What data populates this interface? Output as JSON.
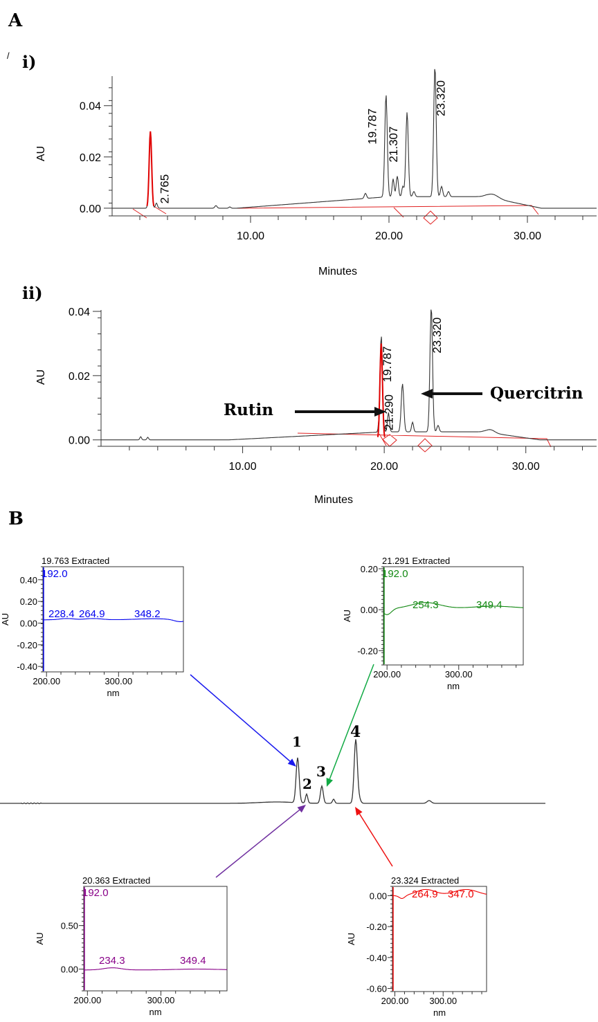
{
  "panel_labels": {
    "a": "A",
    "b": "B",
    "i": "i)",
    "ii": "ii)",
    "slash": "/"
  },
  "chart_data": [
    {
      "id": "chrom_i",
      "type": "line",
      "xlabel": "Minutes",
      "ylabel": "AU",
      "xlim": [
        0,
        35
      ],
      "ylim": [
        -0.003,
        0.051
      ],
      "xticks": [
        10,
        20,
        30
      ],
      "xtick_labels": [
        "10.00",
        "20.00",
        "30.00"
      ],
      "yticks": [
        0,
        0.02,
        0.04
      ],
      "ytick_labels": [
        "0.00",
        "0.02",
        "0.04"
      ],
      "peaks": [
        {
          "rt": 2.765,
          "height": 0.03,
          "label": "2.765",
          "color": "#e00000"
        },
        {
          "rt": 19.787,
          "height": 0.04,
          "label": "19.787",
          "color": "#222222"
        },
        {
          "rt": 21.307,
          "height": 0.033,
          "label": "21.307",
          "color": "#222222"
        },
        {
          "rt": 23.32,
          "height": 0.051,
          "label": "23.320",
          "color": "#222222"
        }
      ]
    },
    {
      "id": "chrom_ii",
      "type": "line",
      "xlabel": "Minutes",
      "ylabel": "AU",
      "xlim": [
        0,
        35
      ],
      "ylim": [
        -0.002,
        0.04
      ],
      "xticks": [
        10,
        20,
        30
      ],
      "xtick_labels": [
        "10.00",
        "20.00",
        "30.00"
      ],
      "yticks": [
        0,
        0.02,
        0.04
      ],
      "ytick_labels": [
        "0.00",
        "0.02",
        "0.04"
      ],
      "peaks": [
        {
          "rt": 19.787,
          "height": 0.03,
          "label": "19.787",
          "color": "#e00000"
        },
        {
          "rt": 21.29,
          "height": 0.015,
          "label": "21.290",
          "color": "#222222"
        },
        {
          "rt": 23.32,
          "height": 0.039,
          "label": "23.320",
          "color": "#222222"
        }
      ],
      "annotations": [
        {
          "text": "Rutin",
          "points_to_rt": 19.787
        },
        {
          "text": "Quercitrin",
          "points_to_rt": 23.32
        }
      ]
    },
    {
      "id": "uv_1",
      "type": "line",
      "title": "19.763 Extracted",
      "xlabel": "nm",
      "ylabel": "AU",
      "color": "#0000ee",
      "xlim": [
        195,
        390
      ],
      "ylim": [
        -0.45,
        0.52
      ],
      "xticks": [
        200,
        300
      ],
      "xtick_labels": [
        "200.00",
        "300.00"
      ],
      "yticks": [
        0.4,
        0.2,
        0.0,
        -0.2,
        -0.4
      ],
      "ytick_labels": [
        "0.40",
        "0.20",
        "0.00",
        "-0.20",
        "-0.40"
      ],
      "maxima": [
        {
          "nm": 192.0,
          "label": "192.0"
        },
        {
          "nm": 228.4,
          "label": "228.4"
        },
        {
          "nm": 264.9,
          "label": "264.9"
        },
        {
          "nm": 348.2,
          "label": "348.2"
        }
      ]
    },
    {
      "id": "uv_3",
      "type": "line",
      "title": "21.291 Extracted",
      "xlabel": "nm",
      "ylabel": "AU",
      "color": "#118811",
      "xlim": [
        195,
        390
      ],
      "ylim": [
        -0.27,
        0.21
      ],
      "xticks": [
        200,
        300
      ],
      "xtick_labels": [
        "200.00",
        "300.00"
      ],
      "yticks": [
        0.2,
        0.0,
        -0.2
      ],
      "ytick_labels": [
        "0.20",
        "0.00",
        "-0.20"
      ],
      "maxima": [
        {
          "nm": 192.0,
          "label": "192.0"
        },
        {
          "nm": 254.3,
          "label": "254.3"
        },
        {
          "nm": 349.4,
          "label": "349.4"
        }
      ]
    },
    {
      "id": "uv_2",
      "type": "line",
      "title": "20.363 Extracted",
      "xlabel": "nm",
      "ylabel": "AU",
      "color": "#880088",
      "xlim": [
        195,
        390
      ],
      "ylim": [
        -0.25,
        0.95
      ],
      "xticks": [
        200,
        300
      ],
      "xtick_labels": [
        "200.00",
        "300.00"
      ],
      "yticks": [
        0.5,
        0.0
      ],
      "ytick_labels": [
        "0.50",
        "0.00"
      ],
      "maxima": [
        {
          "nm": 192.0,
          "label": "192.0"
        },
        {
          "nm": 234.3,
          "label": "234.3"
        },
        {
          "nm": 349.4,
          "label": "349.4"
        }
      ]
    },
    {
      "id": "uv_4",
      "type": "line",
      "title": "23.324 Extracted",
      "xlabel": "nm",
      "ylabel": "AU",
      "color": "#ee0000",
      "xlim": [
        195,
        390
      ],
      "ylim": [
        -0.62,
        0.06
      ],
      "xticks": [
        200,
        300
      ],
      "xtick_labels": [
        "200.00",
        "300.00"
      ],
      "yticks": [
        0.0,
        -0.2,
        -0.4,
        -0.6
      ],
      "ytick_labels": [
        "0.00",
        "-0.20",
        "-0.40",
        "-0.60"
      ],
      "maxima": [
        {
          "nm": 264.9,
          "label": "264.9"
        },
        {
          "nm": 347.0,
          "label": "347.0"
        }
      ]
    }
  ],
  "overview": {
    "peak_labels": [
      "1",
      "2",
      "3",
      "4"
    ],
    "arrow_colors": [
      "#1a1aee",
      "#7030a0",
      "#11aa44",
      "#ee1111"
    ]
  }
}
